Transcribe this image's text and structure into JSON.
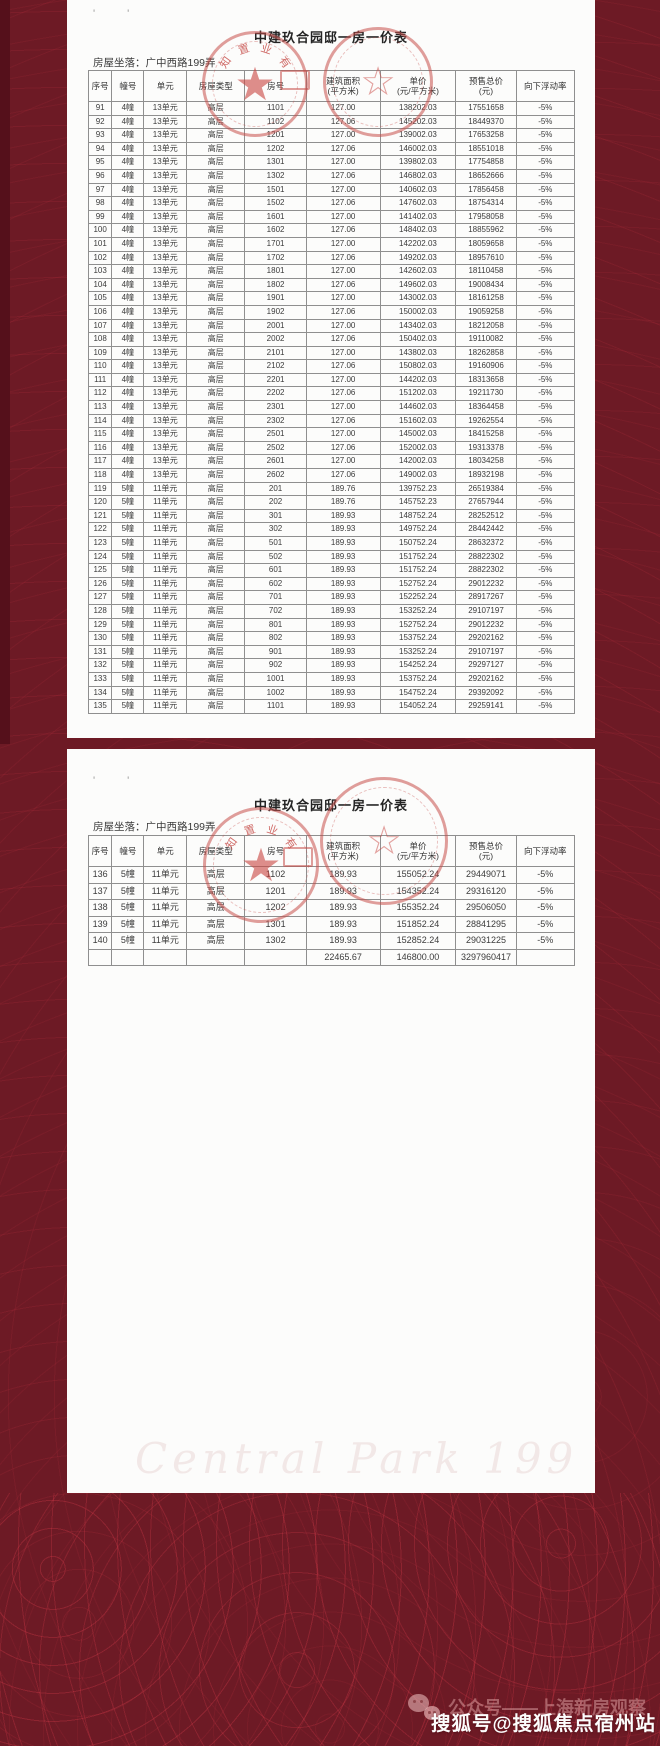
{
  "doc": {
    "title": "中建玖合园邸一房一价表",
    "location_label": "房屋坐落：广中西路199弄",
    "corner_marks": [
      "'",
      "'"
    ],
    "headers": [
      [
        "序号",
        ""
      ],
      [
        "幢号",
        ""
      ],
      [
        "单元",
        ""
      ],
      [
        "房屋类型",
        ""
      ],
      [
        "房号",
        ""
      ],
      [
        "建筑面积",
        "(平方米)"
      ],
      [
        "单价",
        "(元/平方米)"
      ],
      [
        "预售总价",
        "(元)"
      ],
      [
        "向下浮动率",
        ""
      ]
    ],
    "stamp": {
      "arc_chars": [
        "知",
        "置",
        "业",
        "有"
      ],
      "star": "★",
      "hollow_star": "☆",
      "color": "#c74e4a"
    },
    "page1_rows": [
      [
        "91",
        "4幢",
        "13单元",
        "高层",
        "1101",
        "127.00",
        "138202.03",
        "17551658",
        "-5%"
      ],
      [
        "92",
        "4幢",
        "13单元",
        "高层",
        "1102",
        "127.06",
        "145202.03",
        "18449370",
        "-5%"
      ],
      [
        "93",
        "4幢",
        "13单元",
        "高层",
        "1201",
        "127.00",
        "139002.03",
        "17653258",
        "-5%"
      ],
      [
        "94",
        "4幢",
        "13单元",
        "高层",
        "1202",
        "127.06",
        "146002.03",
        "18551018",
        "-5%"
      ],
      [
        "95",
        "4幢",
        "13单元",
        "高层",
        "1301",
        "127.00",
        "139802.03",
        "17754858",
        "-5%"
      ],
      [
        "96",
        "4幢",
        "13单元",
        "高层",
        "1302",
        "127.06",
        "146802.03",
        "18652666",
        "-5%"
      ],
      [
        "97",
        "4幢",
        "13单元",
        "高层",
        "1501",
        "127.00",
        "140602.03",
        "17856458",
        "-5%"
      ],
      [
        "98",
        "4幢",
        "13单元",
        "高层",
        "1502",
        "127.06",
        "147602.03",
        "18754314",
        "-5%"
      ],
      [
        "99",
        "4幢",
        "13单元",
        "高层",
        "1601",
        "127.00",
        "141402.03",
        "17958058",
        "-5%"
      ],
      [
        "100",
        "4幢",
        "13单元",
        "高层",
        "1602",
        "127.06",
        "148402.03",
        "18855962",
        "-5%"
      ],
      [
        "101",
        "4幢",
        "13单元",
        "高层",
        "1701",
        "127.00",
        "142202.03",
        "18059658",
        "-5%"
      ],
      [
        "102",
        "4幢",
        "13单元",
        "高层",
        "1702",
        "127.06",
        "149202.03",
        "18957610",
        "-5%"
      ],
      [
        "103",
        "4幢",
        "13单元",
        "高层",
        "1801",
        "127.00",
        "142602.03",
        "18110458",
        "-5%"
      ],
      [
        "104",
        "4幢",
        "13单元",
        "高层",
        "1802",
        "127.06",
        "149602.03",
        "19008434",
        "-5%"
      ],
      [
        "105",
        "4幢",
        "13单元",
        "高层",
        "1901",
        "127.00",
        "143002.03",
        "18161258",
        "-5%"
      ],
      [
        "106",
        "4幢",
        "13单元",
        "高层",
        "1902",
        "127.06",
        "150002.03",
        "19059258",
        "-5%"
      ],
      [
        "107",
        "4幢",
        "13单元",
        "高层",
        "2001",
        "127.00",
        "143402.03",
        "18212058",
        "-5%"
      ],
      [
        "108",
        "4幢",
        "13单元",
        "高层",
        "2002",
        "127.06",
        "150402.03",
        "19110082",
        "-5%"
      ],
      [
        "109",
        "4幢",
        "13单元",
        "高层",
        "2101",
        "127.00",
        "143802.03",
        "18262858",
        "-5%"
      ],
      [
        "110",
        "4幢",
        "13单元",
        "高层",
        "2102",
        "127.06",
        "150802.03",
        "19160906",
        "-5%"
      ],
      [
        "111",
        "4幢",
        "13单元",
        "高层",
        "2201",
        "127.00",
        "144202.03",
        "18313658",
        "-5%"
      ],
      [
        "112",
        "4幢",
        "13单元",
        "高层",
        "2202",
        "127.06",
        "151202.03",
        "19211730",
        "-5%"
      ],
      [
        "113",
        "4幢",
        "13单元",
        "高层",
        "2301",
        "127.00",
        "144602.03",
        "18364458",
        "-5%"
      ],
      [
        "114",
        "4幢",
        "13单元",
        "高层",
        "2302",
        "127.06",
        "151602.03",
        "19262554",
        "-5%"
      ],
      [
        "115",
        "4幢",
        "13单元",
        "高层",
        "2501",
        "127.00",
        "145002.03",
        "18415258",
        "-5%"
      ],
      [
        "116",
        "4幢",
        "13单元",
        "高层",
        "2502",
        "127.06",
        "152002.03",
        "19313378",
        "-5%"
      ],
      [
        "117",
        "4幢",
        "13单元",
        "高层",
        "2601",
        "127.00",
        "142002.03",
        "18034258",
        "-5%"
      ],
      [
        "118",
        "4幢",
        "13单元",
        "高层",
        "2602",
        "127.06",
        "149002.03",
        "18932198",
        "-5%"
      ],
      [
        "119",
        "5幢",
        "11单元",
        "高层",
        "201",
        "189.76",
        "139752.23",
        "26519384",
        "-5%"
      ],
      [
        "120",
        "5幢",
        "11单元",
        "高层",
        "202",
        "189.76",
        "145752.23",
        "27657944",
        "-5%"
      ],
      [
        "121",
        "5幢",
        "11单元",
        "高层",
        "301",
        "189.93",
        "148752.24",
        "28252512",
        "-5%"
      ],
      [
        "122",
        "5幢",
        "11单元",
        "高层",
        "302",
        "189.93",
        "149752.24",
        "28442442",
        "-5%"
      ],
      [
        "123",
        "5幢",
        "11单元",
        "高层",
        "501",
        "189.93",
        "150752.24",
        "28632372",
        "-5%"
      ],
      [
        "124",
        "5幢",
        "11单元",
        "高层",
        "502",
        "189.93",
        "151752.24",
        "28822302",
        "-5%"
      ],
      [
        "125",
        "5幢",
        "11单元",
        "高层",
        "601",
        "189.93",
        "151752.24",
        "28822302",
        "-5%"
      ],
      [
        "126",
        "5幢",
        "11单元",
        "高层",
        "602",
        "189.93",
        "152752.24",
        "29012232",
        "-5%"
      ],
      [
        "127",
        "5幢",
        "11单元",
        "高层",
        "701",
        "189.93",
        "152252.24",
        "28917267",
        "-5%"
      ],
      [
        "128",
        "5幢",
        "11单元",
        "高层",
        "702",
        "189.93",
        "153252.24",
        "29107197",
        "-5%"
      ],
      [
        "129",
        "5幢",
        "11单元",
        "高层",
        "801",
        "189.93",
        "152752.24",
        "29012232",
        "-5%"
      ],
      [
        "130",
        "5幢",
        "11单元",
        "高层",
        "802",
        "189.93",
        "153752.24",
        "29202162",
        "-5%"
      ],
      [
        "131",
        "5幢",
        "11单元",
        "高层",
        "901",
        "189.93",
        "153252.24",
        "29107197",
        "-5%"
      ],
      [
        "132",
        "5幢",
        "11单元",
        "高层",
        "902",
        "189.93",
        "154252.24",
        "29297127",
        "-5%"
      ],
      [
        "133",
        "5幢",
        "11单元",
        "高层",
        "1001",
        "189.93",
        "153752.24",
        "29202162",
        "-5%"
      ],
      [
        "134",
        "5幢",
        "11单元",
        "高层",
        "1002",
        "189.93",
        "154752.24",
        "29392092",
        "-5%"
      ],
      [
        "135",
        "5幢",
        "11单元",
        "高层",
        "1101",
        "189.93",
        "154052.24",
        "29259141",
        "-5%"
      ]
    ],
    "page2_rows": [
      [
        "136",
        "5幢",
        "11单元",
        "高层",
        "1102",
        "189.93",
        "155052.24",
        "29449071",
        "-5%"
      ],
      [
        "137",
        "5幢",
        "11单元",
        "高层",
        "1201",
        "189.93",
        "154352.24",
        "29316120",
        "-5%"
      ],
      [
        "138",
        "5幢",
        "11单元",
        "高层",
        "1202",
        "189.93",
        "155352.24",
        "29506050",
        "-5%"
      ],
      [
        "139",
        "5幢",
        "11单元",
        "高层",
        "1301",
        "189.93",
        "151852.24",
        "28841295",
        "-5%"
      ],
      [
        "140",
        "5幢",
        "11单元",
        "高层",
        "1302",
        "189.93",
        "152852.24",
        "29031225",
        "-5%"
      ]
    ],
    "totals_row": [
      "",
      "",
      "",
      "",
      "",
      "22465.67",
      "146800.00",
      "3297960417",
      ""
    ]
  },
  "watermarks": {
    "script_text": "Central Park 199",
    "wechat_label": "公众号——上海新房观察",
    "sohu_label": "搜狐号@搜狐焦点宿州站"
  }
}
